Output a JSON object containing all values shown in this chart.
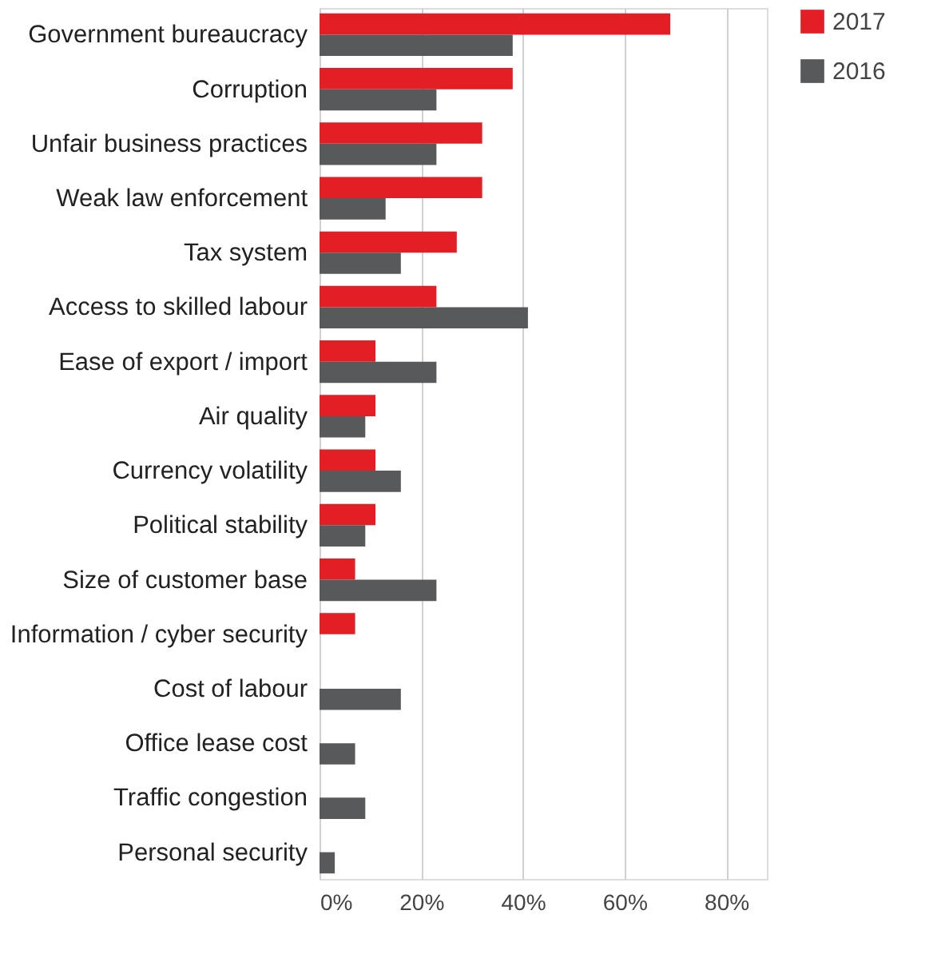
{
  "chart_data": {
    "type": "bar",
    "orientation": "horizontal",
    "categories": [
      "Government bureaucracy",
      "Corruption",
      "Unfair business practices",
      "Weak law enforcement",
      "Tax system",
      "Access to skilled labour",
      "Ease of export / import",
      "Air quality",
      "Currency volatility",
      "Political stability",
      "Size of customer base",
      "Information / cyber security",
      "Cost of labour",
      "Office lease cost",
      "Traffic congestion",
      "Personal security"
    ],
    "series": [
      {
        "name": "2017",
        "color": "#e31e24",
        "values": [
          69,
          38,
          32,
          32,
          27,
          23,
          11,
          11,
          11,
          11,
          7,
          7,
          null,
          null,
          null,
          null
        ]
      },
      {
        "name": "2016",
        "color": "#58595b",
        "values": [
          38,
          23,
          23,
          13,
          16,
          41,
          23,
          9,
          16,
          9,
          23,
          null,
          16,
          7,
          9,
          3
        ]
      }
    ],
    "xlim": [
      0,
      88
    ],
    "xticks": [
      {
        "value": 0,
        "label": "0%"
      },
      {
        "value": 20,
        "label": "20%"
      },
      {
        "value": 40,
        "label": "40%"
      },
      {
        "value": 60,
        "label": "60%"
      },
      {
        "value": 80,
        "label": "80%"
      }
    ],
    "grid": "x",
    "legend": "right"
  }
}
